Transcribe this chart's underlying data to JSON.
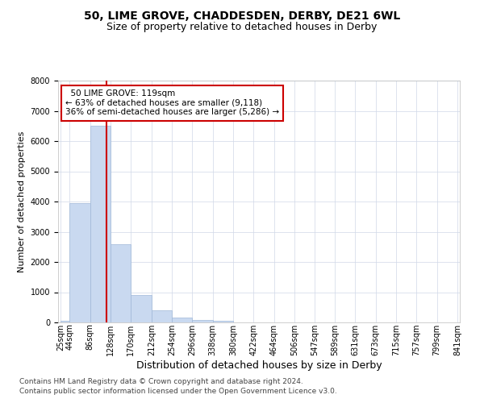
{
  "title1": "50, LIME GROVE, CHADDESDEN, DERBY, DE21 6WL",
  "title2": "Size of property relative to detached houses in Derby",
  "xlabel": "Distribution of detached houses by size in Derby",
  "ylabel": "Number of detached properties",
  "bin_edges": [
    25,
    44,
    86,
    128,
    170,
    212,
    254,
    296,
    338,
    380,
    422,
    464,
    506,
    547,
    589,
    631,
    673,
    715,
    757,
    799,
    841
  ],
  "bar_heights": [
    50,
    3950,
    6500,
    2600,
    900,
    400,
    150,
    80,
    50,
    0,
    0,
    0,
    0,
    0,
    0,
    0,
    0,
    0,
    0,
    0
  ],
  "bar_color": "#c9d9f0",
  "bar_edgecolor": "#a0b8d8",
  "grid_color": "#d0d8e8",
  "property_line_x": 119,
  "property_line_color": "#cc0000",
  "annotation_text": "  50 LIME GROVE: 119sqm\n← 63% of detached houses are smaller (9,118)\n36% of semi-detached houses are larger (5,286) →",
  "annotation_box_color": "white",
  "annotation_box_edgecolor": "#cc0000",
  "ylim": [
    0,
    8000
  ],
  "yticks": [
    0,
    1000,
    2000,
    3000,
    4000,
    5000,
    6000,
    7000,
    8000
  ],
  "footer1": "Contains HM Land Registry data © Crown copyright and database right 2024.",
  "footer2": "Contains public sector information licensed under the Open Government Licence v3.0.",
  "title1_fontsize": 10,
  "title2_fontsize": 9,
  "xlabel_fontsize": 9,
  "ylabel_fontsize": 8,
  "tick_fontsize": 7,
  "annotation_fontsize": 7.5,
  "footer_fontsize": 6.5
}
